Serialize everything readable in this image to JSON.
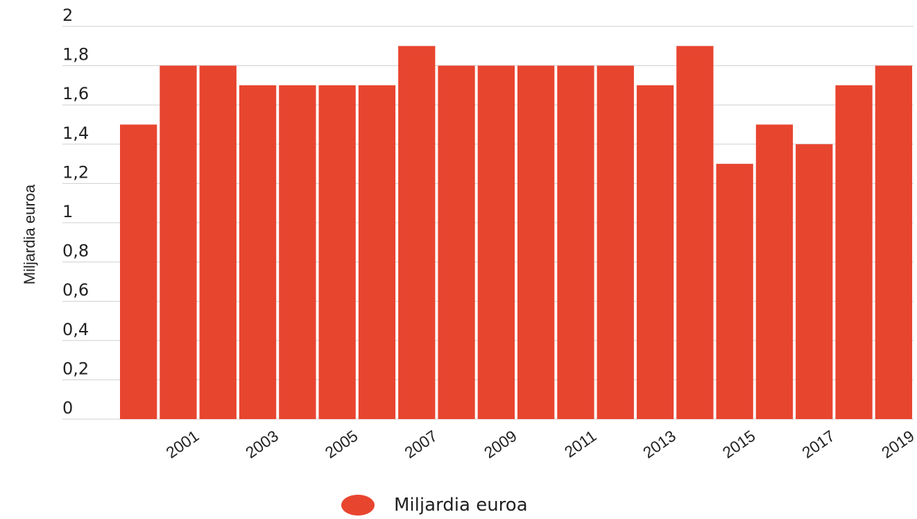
{
  "chart_data": {
    "type": "bar",
    "categories": [
      "2000",
      "2001",
      "2002",
      "2003",
      "2004",
      "2005",
      "2006",
      "2007",
      "2008",
      "2009",
      "2010",
      "2011",
      "2012",
      "2013",
      "2014",
      "2015",
      "2016",
      "2017",
      "2018",
      "2019"
    ],
    "tick_labels_shown": [
      "2001",
      "2003",
      "2005",
      "2007",
      "2009",
      "2011",
      "2013",
      "2015",
      "2017",
      "2019"
    ],
    "series": [
      {
        "name": "Miljardia euroa",
        "values": [
          1.5,
          1.8,
          1.8,
          1.7,
          1.7,
          1.7,
          1.7,
          1.9,
          1.8,
          1.8,
          1.8,
          1.8,
          1.8,
          1.7,
          1.9,
          1.3,
          1.5,
          1.4,
          1.7,
          1.8
        ]
      }
    ],
    "ylabel": "Miljardia euroa",
    "xlabel": "",
    "ylim": [
      0,
      2
    ],
    "yticks": [
      "0",
      "0,2",
      "0,4",
      "0,6",
      "0,8",
      "1",
      "1,2",
      "1,4",
      "1,6",
      "1,8",
      "2"
    ],
    "grid": true,
    "legend_position": "bottom",
    "bar_color": "#e8452f"
  },
  "legend": {
    "label": "Miljardia euroa"
  }
}
